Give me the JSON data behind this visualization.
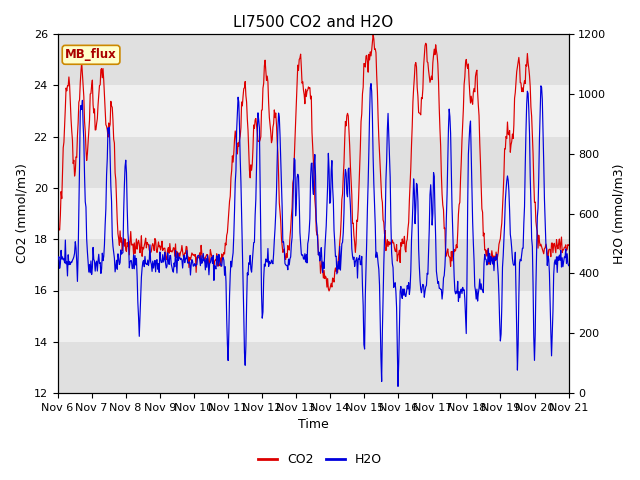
{
  "title": "LI7500 CO2 and H2O",
  "xlabel": "Time",
  "ylabel_left": "CO2 (mmol/m3)",
  "ylabel_right": "H2O (mmol/m3)",
  "ylim_left": [
    12,
    26
  ],
  "ylim_right": [
    0,
    1200
  ],
  "yticks_left": [
    12,
    14,
    16,
    18,
    20,
    22,
    24,
    26
  ],
  "yticks_right": [
    0,
    200,
    400,
    600,
    800,
    1000,
    1200
  ],
  "xtick_labels": [
    "Nov 6",
    "Nov 7",
    "Nov 8",
    "Nov 9",
    "Nov 10",
    "Nov 11",
    "Nov 12",
    "Nov 13",
    "Nov 14",
    "Nov 15",
    "Nov 16",
    "Nov 17",
    "Nov 18",
    "Nov 19",
    "Nov 20",
    "Nov 21"
  ],
  "co2_color": "#dd0000",
  "h2o_color": "#0000dd",
  "band_colors_dark": "#e0e0e0",
  "band_colors_light": "#f0f0f0",
  "legend_label_co2": "CO2",
  "legend_label_h2o": "H2O",
  "annotation_text": "MB_flux",
  "annotation_bg": "#ffffcc",
  "annotation_edge": "#cc8800",
  "annotation_text_color": "#aa0000",
  "title_fontsize": 11,
  "label_fontsize": 9,
  "tick_fontsize": 8,
  "legend_fontsize": 9,
  "n_days": 15,
  "n_points": 720
}
